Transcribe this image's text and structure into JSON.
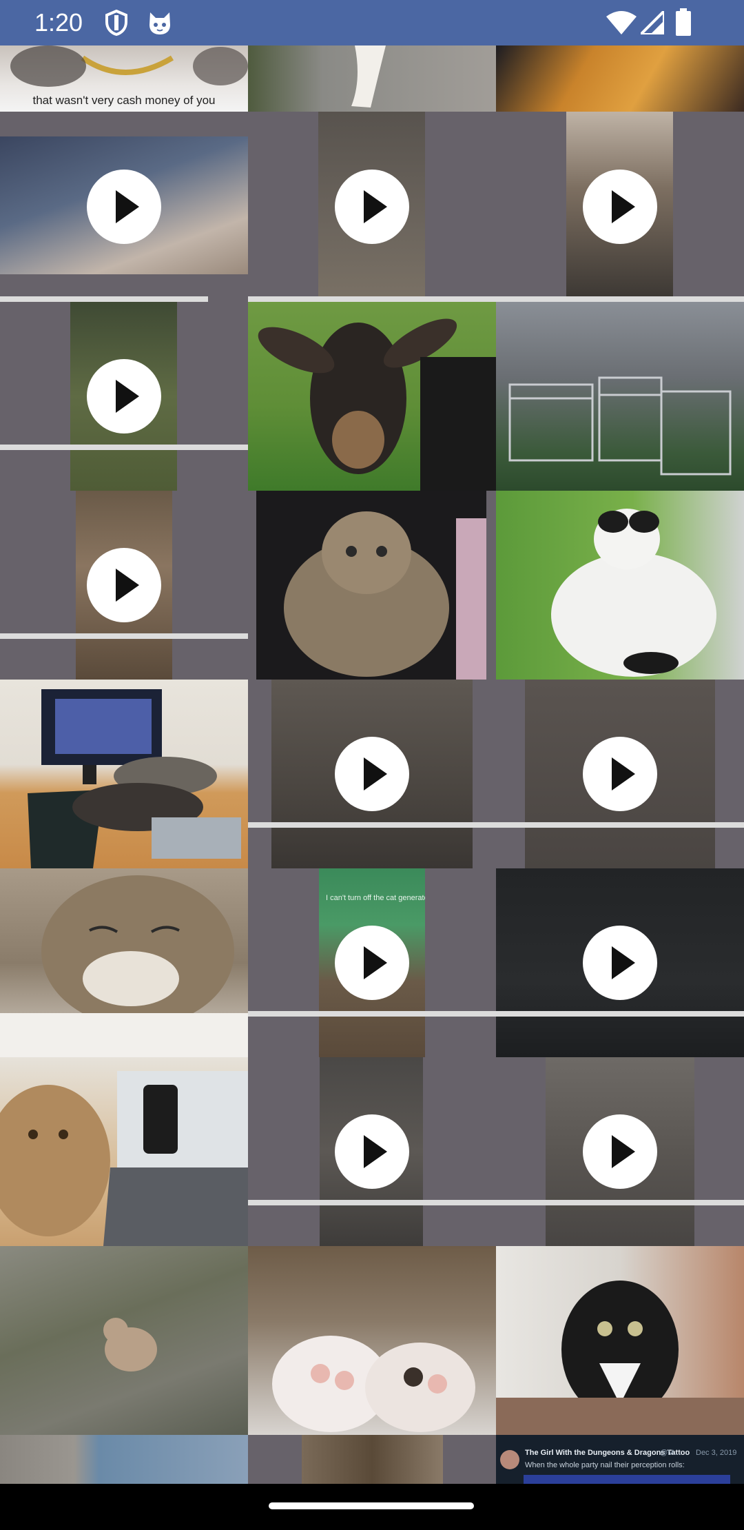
{
  "status_bar": {
    "time": "1:20",
    "icons": [
      "shield-icon",
      "cat-face-icon",
      "wifi-icon",
      "signal-icon",
      "battery-icon"
    ],
    "color": "#4b67a3"
  },
  "grid": {
    "background": "#67626a",
    "cells": [
      {
        "kind": "image",
        "subject": "cat-with-gold-chain",
        "caption": "that wasn't very cash money of you"
      },
      {
        "kind": "image",
        "subject": "cat-paws-on-pavement"
      },
      {
        "kind": "image",
        "subject": "halloween-blanket"
      },
      {
        "kind": "video",
        "subject": "cat-by-window-net"
      },
      {
        "kind": "video",
        "subject": "dim-room"
      },
      {
        "kind": "video",
        "subject": "box-on-shelf"
      },
      {
        "kind": "video",
        "subject": "cat-in-garden"
      },
      {
        "kind": "image",
        "subject": "goat-closeup"
      },
      {
        "kind": "image",
        "subject": "car-trunk-with-traps"
      },
      {
        "kind": "video",
        "subject": "child-on-deck"
      },
      {
        "kind": "image",
        "subject": "tabby-cat-held"
      },
      {
        "kind": "image",
        "subject": "white-cat-sitting"
      },
      {
        "kind": "image",
        "subject": "cats-on-desk"
      },
      {
        "kind": "video",
        "subject": "room-with-shelves"
      },
      {
        "kind": "video",
        "subject": "hand-dark-floor"
      },
      {
        "kind": "image",
        "subject": "tabby-cat-squint"
      },
      {
        "kind": "video",
        "subject": "green-watering-can",
        "caption": "I can't turn off the cat generator 😂😍"
      },
      {
        "kind": "video",
        "subject": "black-cat-dark"
      },
      {
        "kind": "image",
        "subject": "calico-cat-laptop"
      },
      {
        "kind": "video",
        "subject": "hallway-night"
      },
      {
        "kind": "video",
        "subject": "kitchen"
      },
      {
        "kind": "image",
        "subject": "cat-on-stone"
      },
      {
        "kind": "image",
        "subject": "cat-paws-closeup"
      },
      {
        "kind": "image",
        "subject": "black-white-kitten"
      },
      {
        "kind": "image",
        "subject": "tree-trunk"
      },
      {
        "kind": "image",
        "subject": "wooden-stairs"
      },
      {
        "kind": "image",
        "subject": "tweet-screenshot",
        "tweet_author": "The Girl With the Dungeons & Dragons Tattoo",
        "tweet_handle": "@M...",
        "tweet_date": "Dec 3, 2019",
        "tweet_text": "When the whole party nail their perception rolls:"
      }
    ]
  },
  "video_progress": [
    0.84,
    1.0,
    1.0,
    1.0,
    1.0,
    1.0,
    1.0,
    1.0,
    1.0,
    1.0,
    1.0
  ],
  "nav_bar": {
    "gesture": "home-handle"
  }
}
